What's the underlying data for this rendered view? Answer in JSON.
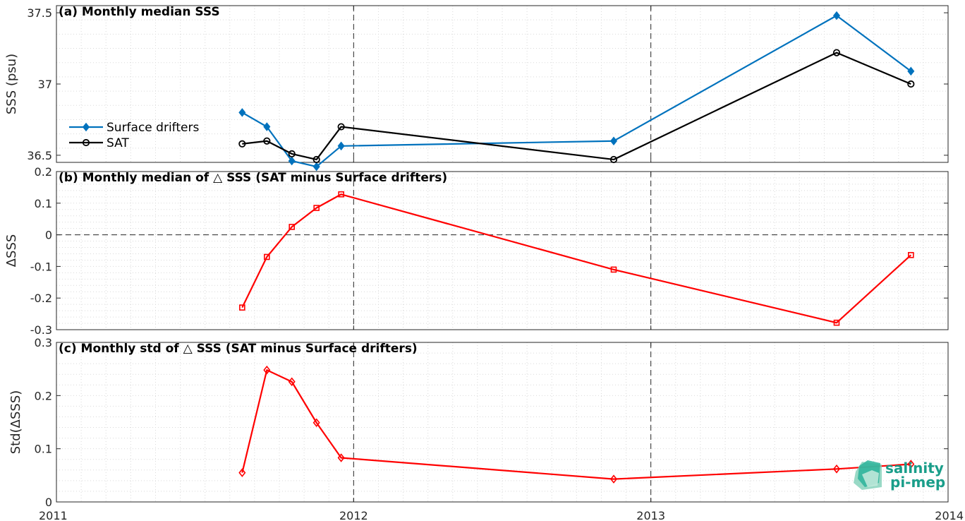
{
  "chart_data": [
    {
      "type": "line",
      "title": "(a) Monthly median SSS",
      "ylabel": "SSS (psu)",
      "ylim": [
        36.45,
        37.55
      ],
      "yticks": [
        36.5,
        37,
        37.5
      ],
      "ytick_labels": [
        "36.5",
        "37",
        "37.5"
      ],
      "grid": true,
      "legend": "middle-left",
      "zero_line": false,
      "series": [
        {
          "name": "Surface drifters",
          "color": "#0072BD",
          "marker": "diamond",
          "x": [
            2011.625,
            2011.708,
            2011.792,
            2011.875,
            2011.958,
            2012.875,
            2013.625,
            2013.875
          ],
          "y": [
            36.8,
            36.7,
            36.46,
            36.42,
            36.565,
            36.6,
            37.48,
            37.09
          ]
        },
        {
          "name": "SAT",
          "color": "#000000",
          "marker": "circle",
          "x": [
            2011.625,
            2011.708,
            2011.792,
            2011.875,
            2011.958,
            2012.875,
            2013.625,
            2013.875
          ],
          "y": [
            36.58,
            36.6,
            36.51,
            36.47,
            36.7,
            36.47,
            37.22,
            37.0
          ]
        }
      ]
    },
    {
      "type": "line",
      "title": "(b) Monthly median of △ SSS (SAT minus Surface drifters)",
      "ylabel": "ΔSSS",
      "ylim": [
        -0.3,
        0.2
      ],
      "yticks": [
        -0.3,
        -0.2,
        -0.1,
        0,
        0.1,
        0.2
      ],
      "ytick_labels": [
        "-0.3",
        "-0.2",
        "-0.1",
        "0",
        "0.1",
        "0.2"
      ],
      "grid": true,
      "zero_line": true,
      "series": [
        {
          "color": "#FF0000",
          "marker": "square",
          "x": [
            2011.625,
            2011.708,
            2011.792,
            2011.875,
            2011.958,
            2012.875,
            2013.625,
            2013.875
          ],
          "y": [
            -0.23,
            -0.07,
            0.025,
            0.085,
            0.128,
            -0.11,
            -0.278,
            -0.064
          ]
        }
      ]
    },
    {
      "type": "line",
      "title": "(c) Monthly std of △ SSS (SAT minus Surface drifters)",
      "ylabel": "Std(ΔSSS)",
      "ylim": [
        0,
        0.3
      ],
      "yticks": [
        0,
        0.1,
        0.2,
        0.3
      ],
      "ytick_labels": [
        "0",
        "0.1",
        "0.2",
        "0.3"
      ],
      "grid": true,
      "zero_line": false,
      "series": [
        {
          "color": "#FF0000",
          "marker": "diamond",
          "x": [
            2011.625,
            2011.708,
            2011.792,
            2011.875,
            2011.958,
            2012.875,
            2013.625,
            2013.875
          ],
          "y": [
            0.055,
            0.248,
            0.226,
            0.149,
            0.083,
            0.043,
            0.062,
            0.071
          ]
        }
      ]
    }
  ],
  "x_axis": {
    "xlim": [
      2011,
      2014
    ],
    "ticks": [
      2011,
      2012,
      2013,
      2014
    ],
    "tick_labels": [
      "2011",
      "2012",
      "2013",
      "2014"
    ],
    "dashed_year_lines": [
      2012,
      2013
    ]
  },
  "logo": {
    "line1": "salinity",
    "line2": "pi-mep"
  },
  "colors": {
    "grid": "#d9d9d9",
    "axis": "#262626",
    "accent": "#1a9e8a"
  }
}
